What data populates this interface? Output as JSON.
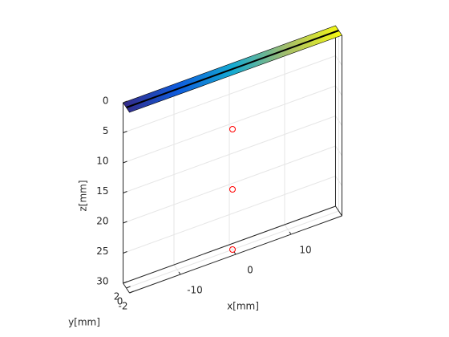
{
  "chart_data": {
    "type": "scatter3d",
    "xlabel": "x[mm]",
    "ylabel": "y[mm]",
    "zlabel": "z[mm]",
    "xlim": [
      -19.2,
      19.2
    ],
    "ylim": [
      -2,
      2
    ],
    "zlim": [
      0,
      30
    ],
    "xticks": [
      -10,
      0,
      10
    ],
    "yticks": [
      -2,
      0,
      2
    ],
    "zticks": [
      0,
      5,
      10,
      15,
      20,
      25,
      30
    ],
    "zdir": "reverse",
    "grid": true,
    "series": [
      {
        "color": "#ff0000",
        "marker": "circle",
        "x": [
          0,
          0,
          0
        ],
        "y": [
          0,
          0,
          0
        ],
        "z": [
          10,
          20,
          30
        ]
      }
    ]
  }
}
